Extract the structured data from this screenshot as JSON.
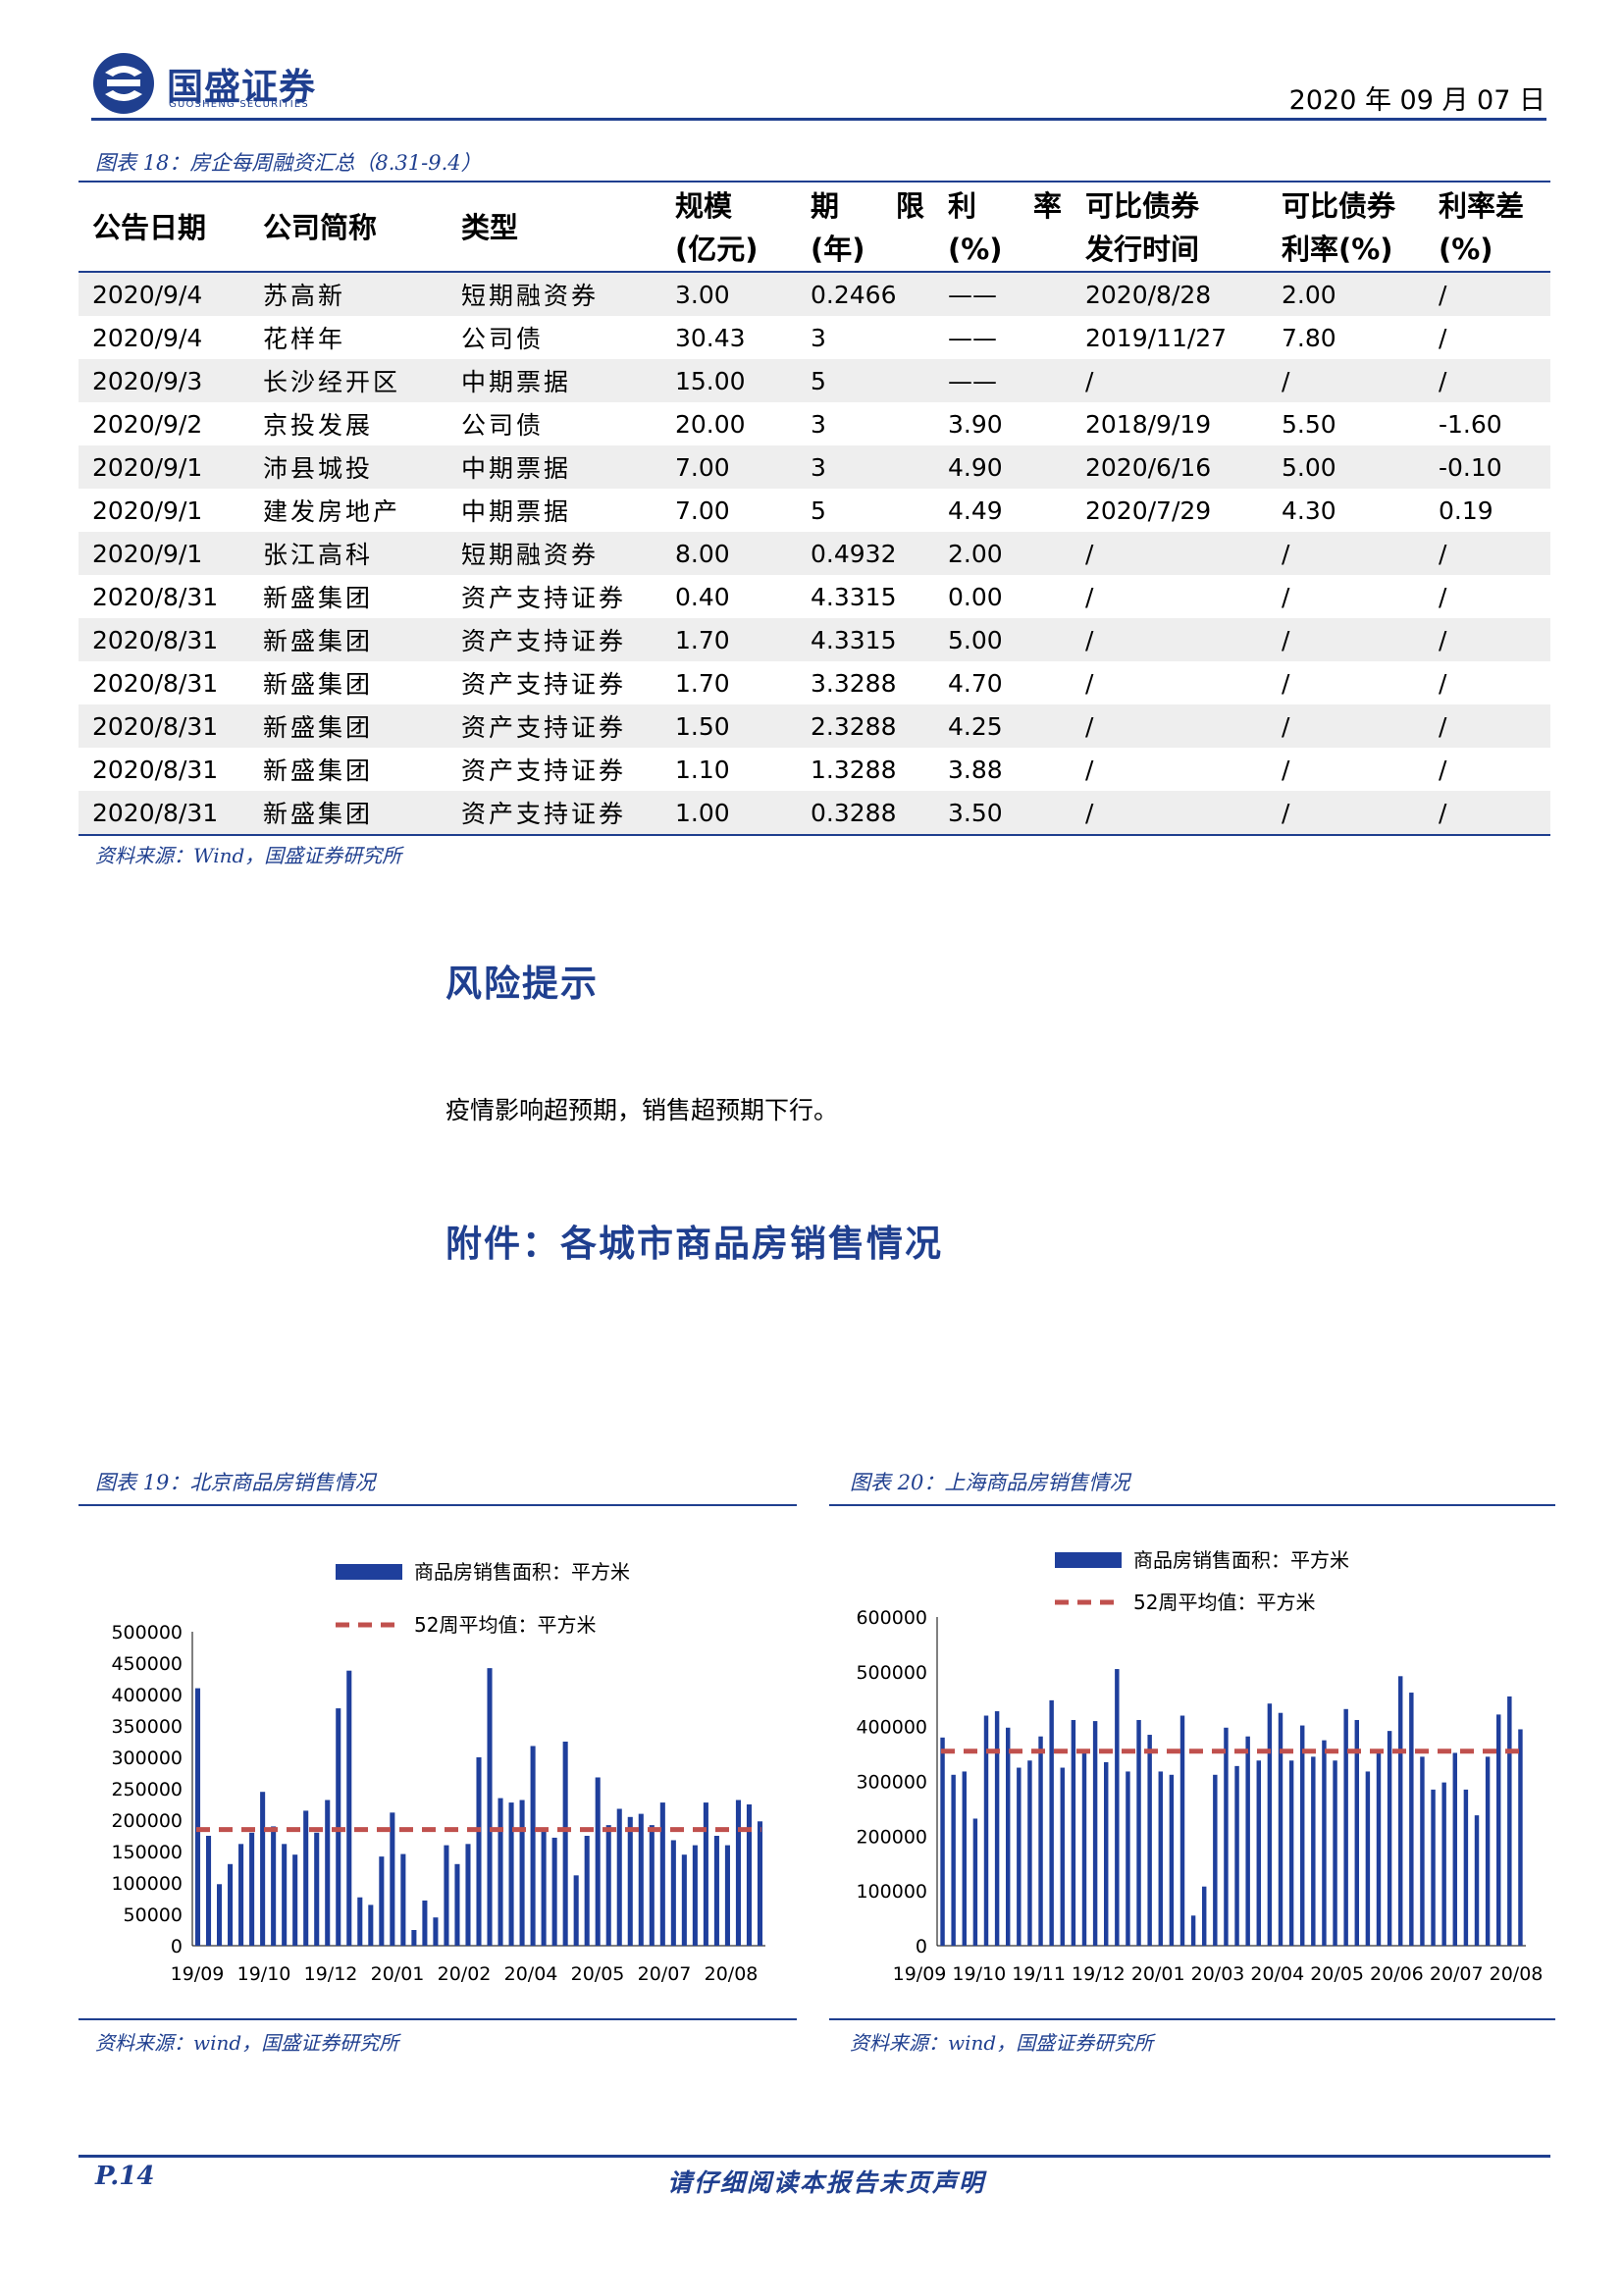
{
  "header": {
    "logo_cn": "国盛证券",
    "logo_en": "GUOSHENG SECURITIES",
    "date": "2020 年 09 月 07 日"
  },
  "table": {
    "caption": "图表 18：房企每周融资汇总（8.31-9.4）",
    "columns": [
      {
        "line1": "公告日期",
        "line2": ""
      },
      {
        "line1": "公司简称",
        "line2": ""
      },
      {
        "line1": "类型",
        "line2": ""
      },
      {
        "line1": "规模",
        "line2": "(亿元)"
      },
      {
        "line1": "期　　限",
        "line2": "(年)"
      },
      {
        "line1": "利　　率",
        "line2": "(%)"
      },
      {
        "line1": "可比债券",
        "line2": "发行时间"
      },
      {
        "line1": "可比债券",
        "line2": "利率(%)"
      },
      {
        "line1": "利率差",
        "line2": "(%)"
      }
    ],
    "rows": [
      [
        "2020/9/4",
        "苏高新",
        "短期融资券",
        "3.00",
        "0.2466",
        "——",
        "2020/8/28",
        "2.00",
        "/"
      ],
      [
        "2020/9/4",
        "花样年",
        "公司债",
        "30.43",
        "3",
        "——",
        "2019/11/27",
        "7.80",
        "/"
      ],
      [
        "2020/9/3",
        "长沙经开区",
        "中期票据",
        "15.00",
        "5",
        "——",
        "/",
        "/",
        "/"
      ],
      [
        "2020/9/2",
        "京投发展",
        "公司债",
        "20.00",
        "3",
        "3.90",
        "2018/9/19",
        "5.50",
        "-1.60"
      ],
      [
        "2020/9/1",
        "沛县城投",
        "中期票据",
        "7.00",
        "3",
        "4.90",
        "2020/6/16",
        "5.00",
        "-0.10"
      ],
      [
        "2020/9/1",
        "建发房地产",
        "中期票据",
        "7.00",
        "5",
        "4.49",
        "2020/7/29",
        "4.30",
        "0.19"
      ],
      [
        "2020/9/1",
        "张江高科",
        "短期融资券",
        "8.00",
        "0.4932",
        "2.00",
        "/",
        "/",
        "/"
      ],
      [
        "2020/8/31",
        "新盛集团",
        "资产支持证券",
        "0.40",
        "4.3315",
        "0.00",
        "/",
        "/",
        "/"
      ],
      [
        "2020/8/31",
        "新盛集团",
        "资产支持证券",
        "1.70",
        "4.3315",
        "5.00",
        "/",
        "/",
        "/"
      ],
      [
        "2020/8/31",
        "新盛集团",
        "资产支持证券",
        "1.70",
        "3.3288",
        "4.70",
        "/",
        "/",
        "/"
      ],
      [
        "2020/8/31",
        "新盛集团",
        "资产支持证券",
        "1.50",
        "2.3288",
        "4.25",
        "/",
        "/",
        "/"
      ],
      [
        "2020/8/31",
        "新盛集团",
        "资产支持证券",
        "1.10",
        "1.3288",
        "3.88",
        "/",
        "/",
        "/"
      ],
      [
        "2020/8/31",
        "新盛集团",
        "资产支持证券",
        "1.00",
        "0.3288",
        "3.50",
        "/",
        "/",
        "/"
      ]
    ],
    "source": "资料来源：Wind，国盛证券研究所"
  },
  "risk": {
    "title": "风险提示",
    "text": "疫情影响超预期，销售超预期下行。"
  },
  "appendix": {
    "title": "附件：各城市商品房销售情况"
  },
  "chart_data": [
    {
      "type": "bar",
      "caption": "图表 19：北京商品房销售情况",
      "source": "资料来源：wind，国盛证券研究所",
      "legend": {
        "bar": "商品房销售面积：平方米",
        "line": "52周平均值：平方米",
        "placement": "top"
      },
      "ylim": [
        0,
        500000
      ],
      "yticks": [
        "0",
        "50000",
        "100000",
        "150000",
        "200000",
        "250000",
        "300000",
        "350000",
        "400000",
        "450000",
        "500000"
      ],
      "xticks": [
        "19/09",
        "19/10",
        "19/12",
        "20/01",
        "20/02",
        "20/04",
        "20/05",
        "20/07",
        "20/08"
      ],
      "series": [
        {
          "name": "商品房销售面积：平方米",
          "values": [
            410000,
            175000,
            98000,
            130000,
            162000,
            180000,
            245000,
            190000,
            162000,
            145000,
            215000,
            180000,
            232000,
            378000,
            438000,
            77000,
            65000,
            142000,
            212000,
            146000,
            25000,
            72000,
            45000,
            160000,
            130000,
            162000,
            300000,
            442000,
            235000,
            228000,
            232000,
            318000,
            185000,
            172000,
            325000,
            112000,
            175000,
            268000,
            192000,
            218000,
            205000,
            210000,
            192000,
            228000,
            168000,
            145000,
            160000,
            228000,
            175000,
            160000,
            232000,
            225000,
            198000
          ]
        },
        {
          "name": "52周平均值：平方米",
          "values": [
            185000
          ]
        }
      ]
    },
    {
      "type": "bar",
      "caption": "图表 20：上海商品房销售情况",
      "source": "资料来源：wind，国盛证券研究所",
      "legend": {
        "bar": "商品房销售面积：平方米",
        "line": "52周平均值：平方米",
        "placement": "top"
      },
      "ylim": [
        0,
        600000
      ],
      "yticks": [
        "0",
        "100000",
        "200000",
        "300000",
        "400000",
        "500000",
        "600000"
      ],
      "xticks": [
        "19/09",
        "19/10",
        "19/11",
        "19/12",
        "20/01",
        "20/03",
        "20/04",
        "20/05",
        "20/06",
        "20/07",
        "20/08"
      ],
      "series": [
        {
          "name": "商品房销售面积：平方米",
          "values": [
            380000,
            312000,
            318000,
            232000,
            420000,
            428000,
            398000,
            325000,
            338000,
            382000,
            448000,
            325000,
            412000,
            358000,
            410000,
            335000,
            505000,
            318000,
            412000,
            385000,
            318000,
            312000,
            420000,
            55000,
            108000,
            312000,
            398000,
            328000,
            382000,
            338000,
            442000,
            425000,
            338000,
            402000,
            345000,
            375000,
            338000,
            432000,
            412000,
            318000,
            358000,
            392000,
            492000,
            462000,
            345000,
            285000,
            298000,
            352000,
            285000,
            238000,
            345000,
            422000,
            455000,
            395000
          ]
        },
        {
          "name": "52周平均值：平方米",
          "values": [
            355000
          ]
        }
      ]
    }
  ],
  "footer": {
    "page": "P.14",
    "notice": "请仔细阅读本报告末页声明"
  },
  "colors": {
    "brand": "#1f3f8f",
    "bar": "#1f3f9c",
    "avg_line": "#c0504d",
    "stripe": "#eeeeee"
  }
}
